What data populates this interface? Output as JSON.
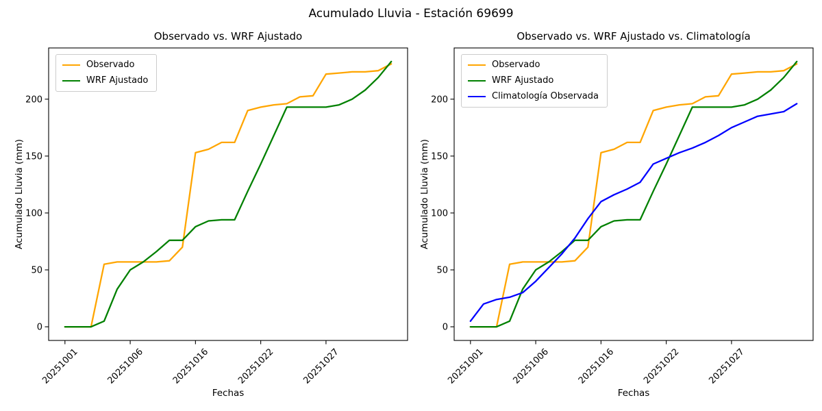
{
  "figure": {
    "suptitle": "Acumulado Lluvia - Estación 69699",
    "background_color": "#ffffff",
    "text_color": "#000000"
  },
  "chart_data": [
    {
      "type": "line",
      "title": "Observado vs. WRF Ajustado",
      "xlabel": "Fechas",
      "ylabel": "Acumulado Lluvia (mm)",
      "x_tick_labels": [
        "20251001",
        "20251006",
        "20251016",
        "20251022",
        "20251027"
      ],
      "x_tick_indices": [
        0,
        5,
        10,
        15,
        20
      ],
      "x_tick_rotation_deg": 45,
      "y_ticks": [
        0,
        50,
        100,
        150,
        200
      ],
      "ylim": [
        -12,
        245
      ],
      "xlim": [
        -1.25,
        26.25
      ],
      "n_points": 26,
      "grid": false,
      "legend_position": "upper-left",
      "series": [
        {
          "name": "Observado",
          "color": "#FFA500",
          "values": [
            0,
            0,
            0,
            55,
            57,
            57,
            57,
            57,
            58,
            70,
            153,
            156,
            162,
            162,
            190,
            193,
            195,
            196,
            202,
            203,
            222,
            223,
            224,
            224,
            225,
            231
          ]
        },
        {
          "name": "WRF Ajustado",
          "color": "#008000",
          "values": [
            0,
            0,
            0,
            5,
            33,
            50,
            57,
            66,
            76,
            76,
            88,
            93,
            94,
            94,
            119,
            143,
            168,
            193,
            193,
            193,
            193,
            195,
            200,
            208,
            219,
            233
          ]
        }
      ]
    },
    {
      "type": "line",
      "title": "Observado vs. WRF Ajustado vs. Climatología",
      "xlabel": "Fechas",
      "ylabel": "Acumulado Lluvia (mm)",
      "x_tick_labels": [
        "20251001",
        "20251006",
        "20251016",
        "20251022",
        "20251027"
      ],
      "x_tick_indices": [
        0,
        5,
        10,
        15,
        20
      ],
      "x_tick_rotation_deg": 45,
      "y_ticks": [
        0,
        50,
        100,
        150,
        200
      ],
      "ylim": [
        -12,
        245
      ],
      "xlim": [
        -1.25,
        26.25
      ],
      "n_points": 26,
      "grid": false,
      "legend_position": "upper-left",
      "series": [
        {
          "name": "Observado",
          "color": "#FFA500",
          "values": [
            0,
            0,
            0,
            55,
            57,
            57,
            57,
            57,
            58,
            70,
            153,
            156,
            162,
            162,
            190,
            193,
            195,
            196,
            202,
            203,
            222,
            223,
            224,
            224,
            225,
            231
          ]
        },
        {
          "name": "WRF Ajustado",
          "color": "#008000",
          "values": [
            0,
            0,
            0,
            5,
            33,
            50,
            57,
            66,
            76,
            76,
            88,
            93,
            94,
            94,
            119,
            143,
            168,
            193,
            193,
            193,
            193,
            195,
            200,
            208,
            219,
            233
          ]
        },
        {
          "name": "Climatología Observada",
          "color": "#0000FF",
          "values": [
            5,
            20,
            24,
            26,
            30,
            40,
            52,
            64,
            78,
            95,
            110,
            116,
            121,
            127,
            143,
            148,
            153,
            157,
            162,
            168,
            175,
            180,
            185,
            187,
            189,
            196
          ]
        }
      ]
    }
  ]
}
